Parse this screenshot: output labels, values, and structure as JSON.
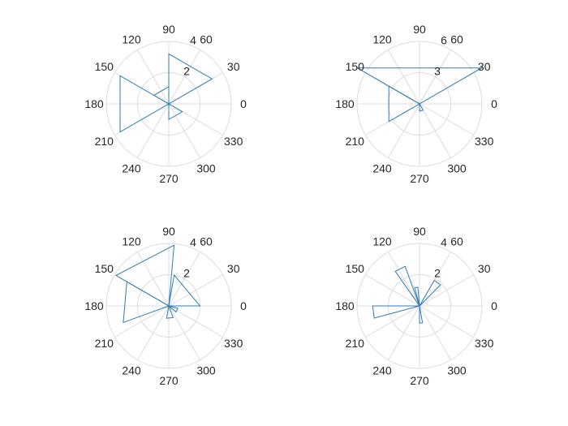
{
  "figure": {
    "background": "#ffffff",
    "line_color": "#2f7bb5",
    "grid_color": "#dcdcdc",
    "text_color": "#262626"
  },
  "chart_data": [
    {
      "type": "polar-histogram",
      "theta_ticks": [
        "0",
        "30",
        "60",
        "90",
        "120",
        "150",
        "180",
        "210",
        "240",
        "270",
        "300",
        "330"
      ],
      "r_ticks": [
        "2",
        "4"
      ],
      "rlim": [
        0,
        4
      ],
      "grid": true,
      "bins": [
        {
          "from": 30,
          "to": 90,
          "count": 3.2
        },
        {
          "from": 90,
          "to": 150,
          "count": 1.1
        },
        {
          "from": 150,
          "to": 210,
          "count": 3.6
        },
        {
          "from": 270,
          "to": 330,
          "count": 1.0
        }
      ]
    },
    {
      "type": "polar-histogram",
      "theta_ticks": [
        "0",
        "30",
        "60",
        "90",
        "120",
        "150",
        "180",
        "210",
        "240",
        "270",
        "300",
        "330"
      ],
      "r_ticks": [
        "3",
        "6"
      ],
      "rlim": [
        0,
        6
      ],
      "grid": true,
      "bins": [
        {
          "from": 30,
          "to": 150,
          "count": 6.9
        },
        {
          "from": 150,
          "to": 210,
          "count": 3.4
        },
        {
          "from": 270,
          "to": 300,
          "count": 0.7
        }
      ]
    },
    {
      "type": "polar-histogram",
      "theta_ticks": [
        "0",
        "30",
        "60",
        "90",
        "120",
        "150",
        "180",
        "210",
        "240",
        "270",
        "300",
        "330"
      ],
      "r_ticks": [
        "2",
        "4"
      ],
      "rlim": [
        0,
        4
      ],
      "grid": true,
      "bins": [
        {
          "from": 0,
          "to": 80,
          "count": 2.0
        },
        {
          "from": 85,
          "to": 150,
          "count": 3.9
        },
        {
          "from": 150,
          "to": 200,
          "count": 3.1
        },
        {
          "from": 260,
          "to": 290,
          "count": 0.8
        },
        {
          "from": 320,
          "to": 345,
          "count": 0.6
        }
      ]
    },
    {
      "type": "polar-histogram",
      "theta_ticks": [
        "0",
        "30",
        "60",
        "90",
        "120",
        "150",
        "180",
        "210",
        "240",
        "270",
        "300",
        "330"
      ],
      "r_ticks": [
        "2",
        "4"
      ],
      "rlim": [
        0,
        4
      ],
      "grid": true,
      "bins": [
        {
          "from": 45,
          "to": 60,
          "count": 1.9
        },
        {
          "from": 95,
          "to": 105,
          "count": 1.2
        },
        {
          "from": 110,
          "to": 125,
          "count": 2.7
        },
        {
          "from": 180,
          "to": 195,
          "count": 3.0
        },
        {
          "from": 270,
          "to": 280,
          "count": 1.1
        }
      ]
    }
  ]
}
